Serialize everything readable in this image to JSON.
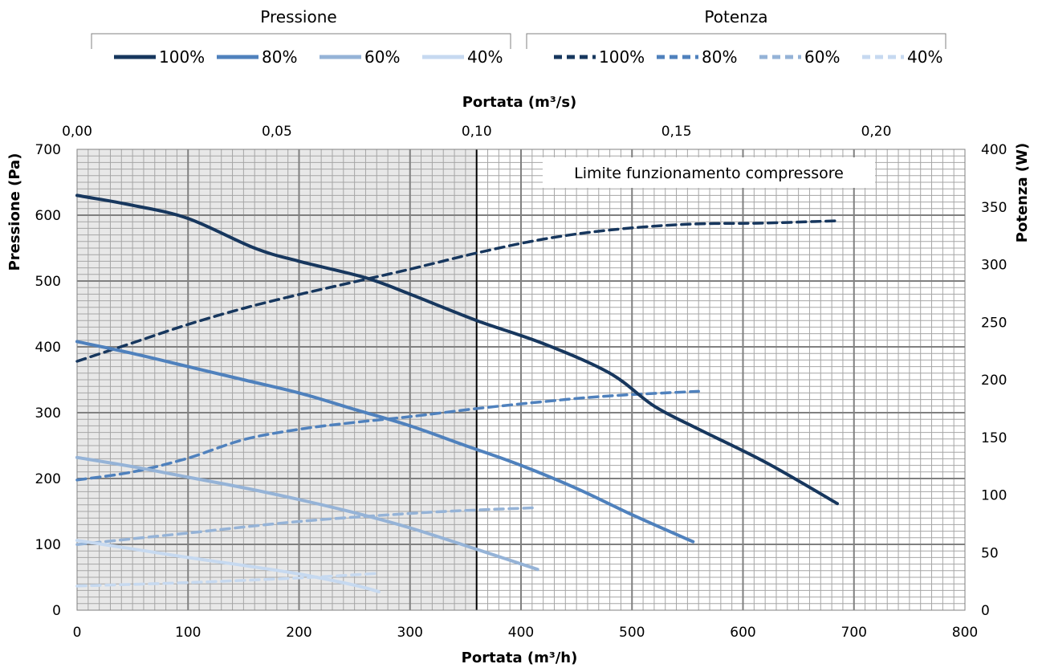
{
  "chart_data": {
    "type": "line",
    "x_bottom_label": "Portata (m³/h)",
    "x_top_label": "Portata (m³/s)",
    "y_left_label": "Pressione (Pa)",
    "y_right_label": "Potenza (W)",
    "x_bottom_range": [
      0,
      800
    ],
    "x_top_range": [
      0,
      0.2222
    ],
    "y_left_range": [
      0,
      700
    ],
    "y_right_range": [
      0,
      400
    ],
    "x_bottom_ticks": [
      "0",
      "100",
      "200",
      "300",
      "400",
      "500",
      "600",
      "700",
      "800"
    ],
    "x_top_ticks": [
      "0,00",
      "0,05",
      "0,10",
      "0,15",
      "0,20"
    ],
    "y_left_ticks": [
      "0",
      "100",
      "200",
      "300",
      "400",
      "500",
      "600",
      "700"
    ],
    "y_right_ticks": [
      "0",
      "50",
      "100",
      "150",
      "200",
      "250",
      "300",
      "350",
      "400"
    ],
    "grid": true,
    "shaded_region": {
      "x_start": 0,
      "x_end": 360,
      "color": "#e8e8e8"
    },
    "vertical_line_x": 360,
    "annotation": "Limite funzionamento compressore",
    "legend_groups": [
      {
        "title": "Pressione",
        "style": "solid",
        "labels": [
          "100%",
          "80%",
          "60%",
          "40%"
        ]
      },
      {
        "title": "Potenza",
        "style": "dashed",
        "labels": [
          "100%",
          "80%",
          "60%",
          "40%"
        ]
      }
    ],
    "colors": [
      "#17375e",
      "#4f81bd",
      "#95b3d7",
      "#c6d9f0"
    ],
    "pressure_series": [
      {
        "name": "100%",
        "axis": "left",
        "x": [
          0,
          50,
          100,
          160,
          200,
          260,
          300,
          360,
          420,
          480,
          520,
          560,
          620,
          685
        ],
        "y": [
          630,
          615,
          595,
          550,
          530,
          505,
          480,
          440,
          405,
          360,
          310,
          275,
          225,
          162
        ]
      },
      {
        "name": "80%",
        "axis": "left",
        "x": [
          0,
          50,
          100,
          150,
          200,
          250,
          300,
          350,
          400,
          450,
          500,
          555
        ],
        "y": [
          408,
          390,
          370,
          350,
          330,
          305,
          280,
          250,
          220,
          185,
          145,
          104
        ]
      },
      {
        "name": "60%",
        "axis": "left",
        "x": [
          0,
          50,
          100,
          150,
          200,
          250,
          300,
          350,
          415
        ],
        "y": [
          232,
          218,
          202,
          186,
          168,
          148,
          125,
          98,
          62
        ]
      },
      {
        "name": "40%",
        "axis": "left",
        "x": [
          0,
          50,
          100,
          150,
          200,
          250,
          272
        ],
        "y": [
          106,
          93,
          80,
          68,
          55,
          38,
          28
        ]
      }
    ],
    "power_series": [
      {
        "name": "100%",
        "axis": "right",
        "x": [
          0,
          50,
          100,
          150,
          200,
          250,
          300,
          360,
          420,
          480,
          550,
          620,
          685
        ],
        "y": [
          216,
          232,
          248,
          262,
          274,
          285,
          296,
          310,
          322,
          330,
          335,
          336,
          338
        ]
      },
      {
        "name": "80%",
        "axis": "right",
        "x": [
          0,
          50,
          100,
          150,
          200,
          250,
          300,
          360,
          420,
          480,
          560
        ],
        "y": [
          113,
          120,
          132,
          148,
          157,
          163,
          168,
          175,
          181,
          186,
          190
        ]
      },
      {
        "name": "60%",
        "axis": "right",
        "x": [
          0,
          100,
          200,
          300,
          360,
          415
        ],
        "y": [
          57,
          67,
          77,
          84,
          87,
          89
        ]
      },
      {
        "name": "40%",
        "axis": "right",
        "x": [
          0,
          100,
          200,
          272
        ],
        "y": [
          21,
          24,
          28,
          32
        ]
      }
    ]
  }
}
